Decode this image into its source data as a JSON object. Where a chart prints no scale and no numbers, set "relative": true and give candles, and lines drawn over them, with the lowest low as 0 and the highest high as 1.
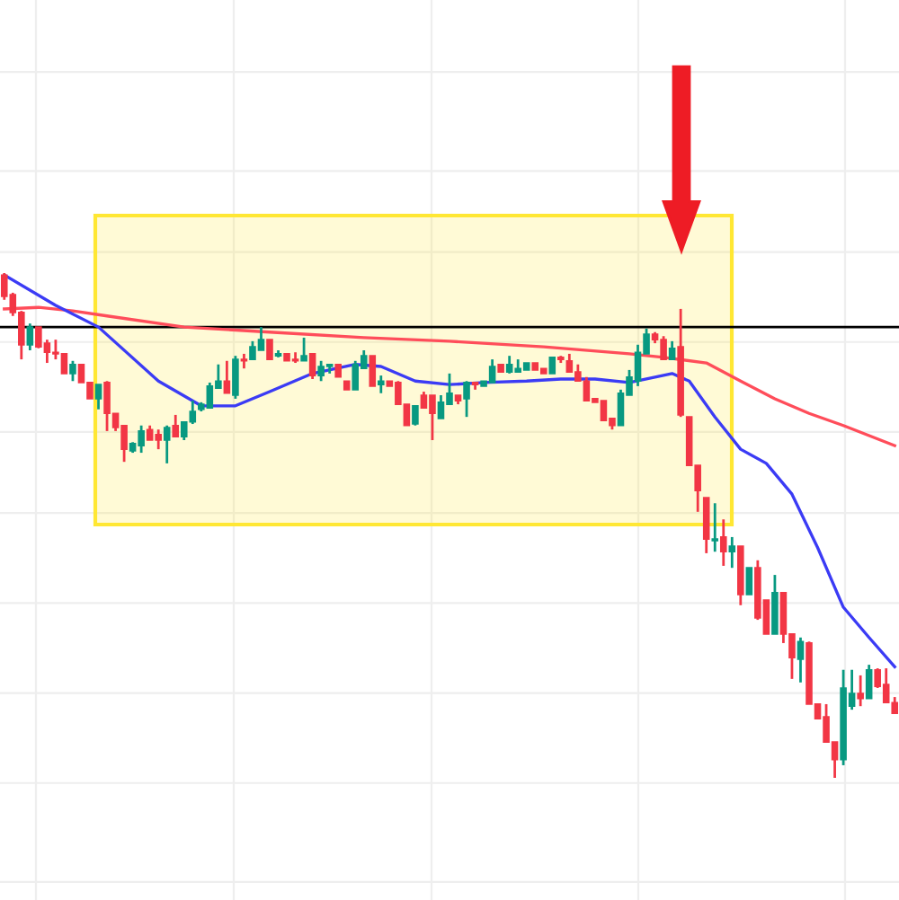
{
  "chart_data": {
    "type": "candlestick",
    "relative": true,
    "grid": true,
    "tick_labels": false,
    "categories": [
      null,
      null,
      null,
      null,
      null,
      null,
      null,
      null,
      null,
      null,
      null,
      null,
      null,
      null,
      null,
      null,
      null,
      null,
      null,
      null,
      null,
      null,
      null,
      null,
      null,
      null,
      null,
      null,
      null,
      null,
      null,
      null,
      null,
      null,
      null,
      null,
      null,
      null,
      null,
      null,
      null,
      null,
      null,
      null,
      null,
      null,
      null,
      null,
      null,
      null,
      null,
      null,
      null,
      null,
      null,
      null,
      null,
      null,
      null,
      null,
      null,
      null,
      null,
      null,
      null,
      null,
      null,
      null,
      null,
      null,
      null,
      null,
      null,
      null,
      null,
      null,
      null,
      null,
      null,
      null,
      null,
      null,
      null,
      null,
      null,
      null,
      null,
      null,
      null,
      null,
      null,
      null,
      null,
      null,
      null,
      null,
      null,
      null,
      null,
      null,
      null,
      null,
      null,
      null,
      null
    ],
    "ohlc": [
      [
        0.996,
        1.0,
        0.947,
        0.954
      ],
      [
        0.957,
        0.961,
        0.915,
        0.922
      ],
      [
        0.922,
        0.925,
        0.829,
        0.858
      ],
      [
        0.858,
        0.9,
        0.847,
        0.893
      ],
      [
        0.893,
        0.893,
        0.851,
        0.854
      ],
      [
        0.861,
        0.868,
        0.822,
        0.843
      ],
      [
        0.843,
        0.868,
        0.829,
        0.84
      ],
      [
        0.84,
        0.84,
        0.801,
        0.801
      ],
      [
        0.801,
        0.826,
        0.786,
        0.819
      ],
      [
        0.819,
        0.819,
        0.783,
        0.783
      ],
      [
        0.783,
        0.783,
        0.751,
        0.751
      ],
      [
        0.751,
        0.779,
        0.73,
        0.779
      ],
      [
        0.783,
        0.786,
        0.687,
        0.722
      ],
      [
        0.722,
        0.722,
        0.687,
        0.694
      ],
      [
        0.698,
        0.698,
        0.626,
        0.651
      ],
      [
        0.648,
        0.665,
        0.644,
        0.662
      ],
      [
        0.658,
        0.698,
        0.644,
        0.687
      ],
      [
        0.69,
        0.698,
        0.669,
        0.669
      ],
      [
        0.68,
        0.69,
        0.651,
        0.669
      ],
      [
        0.669,
        0.698,
        0.623,
        0.694
      ],
      [
        0.698,
        0.719,
        0.676,
        0.676
      ],
      [
        0.676,
        0.705,
        0.669,
        0.705
      ],
      [
        0.705,
        0.747,
        0.701,
        0.726
      ],
      [
        0.73,
        0.744,
        0.726,
        0.74
      ],
      [
        0.733,
        0.783,
        0.733,
        0.776
      ],
      [
        0.772,
        0.819,
        0.772,
        0.786
      ],
      [
        0.786,
        0.826,
        0.762,
        0.762
      ],
      [
        0.758,
        0.836,
        0.751,
        0.829
      ],
      [
        0.829,
        0.84,
        0.811,
        0.826
      ],
      [
        0.829,
        0.865,
        0.829,
        0.854
      ],
      [
        0.847,
        0.893,
        0.847,
        0.868
      ],
      [
        0.868,
        0.868,
        0.829,
        0.829
      ],
      [
        0.836,
        0.847,
        0.833,
        0.84
      ],
      [
        0.84,
        0.84,
        0.826,
        0.826
      ],
      [
        0.829,
        0.843,
        0.822,
        0.826
      ],
      [
        0.826,
        0.872,
        0.826,
        0.836
      ],
      [
        0.84,
        0.84,
        0.79,
        0.797
      ],
      [
        0.797,
        0.826,
        0.786,
        0.815
      ],
      [
        0.815,
        0.819,
        0.801,
        0.819
      ],
      [
        0.819,
        0.819,
        0.794,
        0.794
      ],
      [
        0.786,
        0.786,
        0.769,
        0.769
      ],
      [
        0.769,
        0.826,
        0.769,
        0.819
      ],
      [
        0.811,
        0.847,
        0.811,
        0.836
      ],
      [
        0.836,
        0.836,
        0.776,
        0.776
      ],
      [
        0.779,
        0.797,
        0.762,
        0.786
      ],
      [
        0.786,
        0.786,
        0.776,
        0.776
      ],
      [
        0.783,
        0.786,
        0.74,
        0.74
      ],
      [
        0.74,
        0.74,
        0.698,
        0.698
      ],
      [
        0.701,
        0.737,
        0.698,
        0.737
      ],
      [
        0.758,
        0.765,
        0.733,
        0.733
      ],
      [
        0.758,
        0.758,
        0.669,
        0.722
      ],
      [
        0.712,
        0.758,
        0.712,
        0.744
      ],
      [
        0.74,
        0.801,
        0.74,
        0.762
      ],
      [
        0.758,
        0.758,
        0.74,
        0.747
      ],
      [
        0.751,
        0.786,
        0.715,
        0.783
      ],
      [
        0.783,
        0.783,
        0.769,
        0.779
      ],
      [
        0.776,
        0.786,
        0.776,
        0.786
      ],
      [
        0.783,
        0.829,
        0.783,
        0.815
      ],
      [
        0.819,
        0.819,
        0.804,
        0.804
      ],
      [
        0.804,
        0.836,
        0.801,
        0.819
      ],
      [
        0.804,
        0.829,
        0.804,
        0.811
      ],
      [
        0.808,
        0.822,
        0.808,
        0.822
      ],
      [
        0.822,
        0.822,
        0.808,
        0.808
      ],
      [
        0.811,
        0.811,
        0.801,
        0.801
      ],
      [
        0.801,
        0.833,
        0.801,
        0.833
      ],
      [
        0.833,
        0.836,
        0.822,
        0.829
      ],
      [
        0.826,
        0.84,
        0.804,
        0.804
      ],
      [
        0.804,
        0.819,
        0.786,
        0.786
      ],
      [
        0.786,
        0.794,
        0.747,
        0.747
      ],
      [
        0.751,
        0.751,
        0.744,
        0.744
      ],
      [
        0.747,
        0.747,
        0.708,
        0.708
      ],
      [
        0.712,
        0.712,
        0.69,
        0.698
      ],
      [
        0.698,
        0.769,
        0.698,
        0.762
      ],
      [
        0.758,
        0.808,
        0.758,
        0.794
      ],
      [
        0.786,
        0.858,
        0.776,
        0.843
      ],
      [
        0.84,
        0.89,
        0.84,
        0.879
      ],
      [
        0.879,
        0.883,
        0.861,
        0.868
      ],
      [
        0.868,
        0.875,
        0.829,
        0.829
      ],
      [
        0.829,
        0.865,
        0.829,
        0.851
      ],
      [
        0.854,
        0.929,
        0.715,
        0.719
      ],
      [
        0.715,
        0.715,
        0.619,
        0.619
      ],
      [
        0.619,
        0.619,
        0.527,
        0.569
      ],
      [
        0.555,
        0.555,
        0.445,
        0.473
      ],
      [
        0.47,
        0.544,
        0.448,
        0.473
      ],
      [
        0.477,
        0.512,
        0.42,
        0.448
      ],
      [
        0.448,
        0.477,
        0.416,
        0.459
      ],
      [
        0.459,
        0.459,
        0.342,
        0.363
      ],
      [
        0.363,
        0.416,
        0.363,
        0.416
      ],
      [
        0.416,
        0.431,
        0.313,
        0.317
      ],
      [
        0.352,
        0.352,
        0.285,
        0.285
      ],
      [
        0.285,
        0.402,
        0.285,
        0.367
      ],
      [
        0.367,
        0.367,
        0.267,
        0.285
      ],
      [
        0.285,
        0.285,
        0.196,
        0.238
      ],
      [
        0.235,
        0.278,
        0.189,
        0.27
      ],
      [
        0.267,
        0.27,
        0.146,
        0.146
      ],
      [
        0.146,
        0.146,
        0.117,
        0.117
      ],
      [
        0.121,
        0.146,
        0.071,
        0.071
      ],
      [
        0.071,
        0.071,
        0.0,
        0.036
      ],
      [
        0.036,
        0.214,
        0.025,
        0.178
      ],
      [
        0.142,
        0.214,
        0.135,
        0.167
      ],
      [
        0.167,
        0.203,
        0.142,
        0.157
      ],
      [
        0.157,
        0.224,
        0.157,
        0.214
      ],
      [
        0.214,
        0.217,
        0.178,
        0.181
      ],
      [
        0.185,
        0.217,
        0.149,
        0.149
      ],
      [
        0.149,
        0.16,
        0.128,
        0.128
      ]
    ],
    "colors": [
      "#f23645",
      "#f23645",
      "#f23645",
      "#089981",
      "#f23645",
      "#f23645",
      "#f23645",
      "#f23645",
      "#089981",
      "#f23645",
      "#f23645",
      "#089981",
      "#f23645",
      "#f23645",
      "#f23645",
      "#089981",
      "#089981",
      "#f23645",
      "#f23645",
      "#089981",
      "#f23645",
      "#089981",
      "#089981",
      "#089981",
      "#089981",
      "#089981",
      "#f23645",
      "#089981",
      "#f23645",
      "#089981",
      "#089981",
      "#f23645",
      "#089981",
      "#f23645",
      "#f23645",
      "#089981",
      "#f23645",
      "#089981",
      "#089981",
      "#f23645",
      "#f23645",
      "#089981",
      "#089981",
      "#f23645",
      "#089981",
      "#f23645",
      "#f23645",
      "#f23645",
      "#089981",
      "#f23645",
      "#f23645",
      "#089981",
      "#089981",
      "#f23645",
      "#089981",
      "#f23645",
      "#089981",
      "#089981",
      "#f23645",
      "#089981",
      "#089981",
      "#089981",
      "#f23645",
      "#f23645",
      "#089981",
      "#f23645",
      "#f23645",
      "#f23645",
      "#f23645",
      "#f23645",
      "#f23645",
      "#f23645",
      "#089981",
      "#089981",
      "#089981",
      "#089981",
      "#f23645",
      "#f23645",
      "#089981",
      "#f23645",
      "#f23645",
      "#f23645",
      "#f23645",
      "#089981",
      "#f23645",
      "#089981",
      "#f23645",
      "#089981",
      "#f23645",
      "#f23645",
      "#089981",
      "#f23645",
      "#f23645",
      "#089981",
      "#f23645",
      "#f23645",
      "#f23645",
      "#f23645",
      "#089981",
      "#089981",
      "#f23645",
      "#089981",
      "#f23645",
      "#f23645",
      "#f23645"
    ],
    "series": [
      {
        "type": "line",
        "color": "#ff4d5a",
        "values": [
          0.929,
          null,
          null,
          null,
          0.932,
          null,
          null,
          null,
          0.925,
          null,
          null,
          null,
          0.915,
          null,
          null,
          null,
          null,
          null,
          null,
          null,
          null,
          0.893,
          null,
          null,
          null,
          null,
          null,
          null,
          null,
          null,
          null,
          0.883,
          null,
          null,
          null,
          null,
          null,
          null,
          null,
          null,
          null,
          null,
          0.872,
          null,
          null,
          null,
          null,
          null,
          null,
          null,
          null,
          null,
          0.865,
          null,
          null,
          null,
          null,
          null,
          null,
          null,
          null,
          null,
          null,
          0.854,
          null,
          null,
          null,
          null,
          null,
          null,
          null,
          null,
          null,
          0.84,
          null,
          null,
          null,
          0.833,
          null,
          null,
          null,
          null,
          0.822,
          null,
          null,
          null,
          0.786,
          null,
          null,
          null,
          0.751,
          null,
          null,
          null,
          0.722,
          null,
          null,
          null,
          0.698,
          null,
          null,
          null,
          null,
          null,
          0.658
        ]
      },
      {
        "type": "line",
        "color": "#3b3bf5",
        "values": [
          0.996,
          null,
          null,
          null,
          null,
          null,
          0.936,
          null,
          null,
          null,
          null,
          0.893,
          null,
          null,
          null,
          null,
          null,
          null,
          0.786,
          null,
          null,
          null,
          null,
          0.737,
          null,
          null,
          null,
          0.737,
          null,
          null,
          null,
          0.765,
          null,
          null,
          null,
          null,
          0.801,
          null,
          null,
          null,
          null,
          0.819,
          null,
          null,
          0.815,
          null,
          null,
          null,
          0.786,
          null,
          null,
          null,
          0.779,
          null,
          null,
          null,
          0.783,
          null,
          null,
          null,
          null,
          0.786,
          null,
          null,
          null,
          0.79,
          null,
          null,
          null,
          0.79,
          null,
          null,
          null,
          0.783,
          null,
          null,
          0.794,
          null,
          0.801,
          null,
          0.786,
          null,
          null,
          0.715,
          null,
          null,
          0.651,
          null,
          null,
          0.623,
          null,
          null,
          0.562,
          null,
          null,
          0.456,
          null,
          null,
          0.338,
          null,
          null,
          0.278,
          null,
          null,
          0.22
        ]
      }
    ],
    "ref_lines": [
      {
        "axis": "y",
        "value": 0.893,
        "color": "#000000"
      }
    ]
  }
}
